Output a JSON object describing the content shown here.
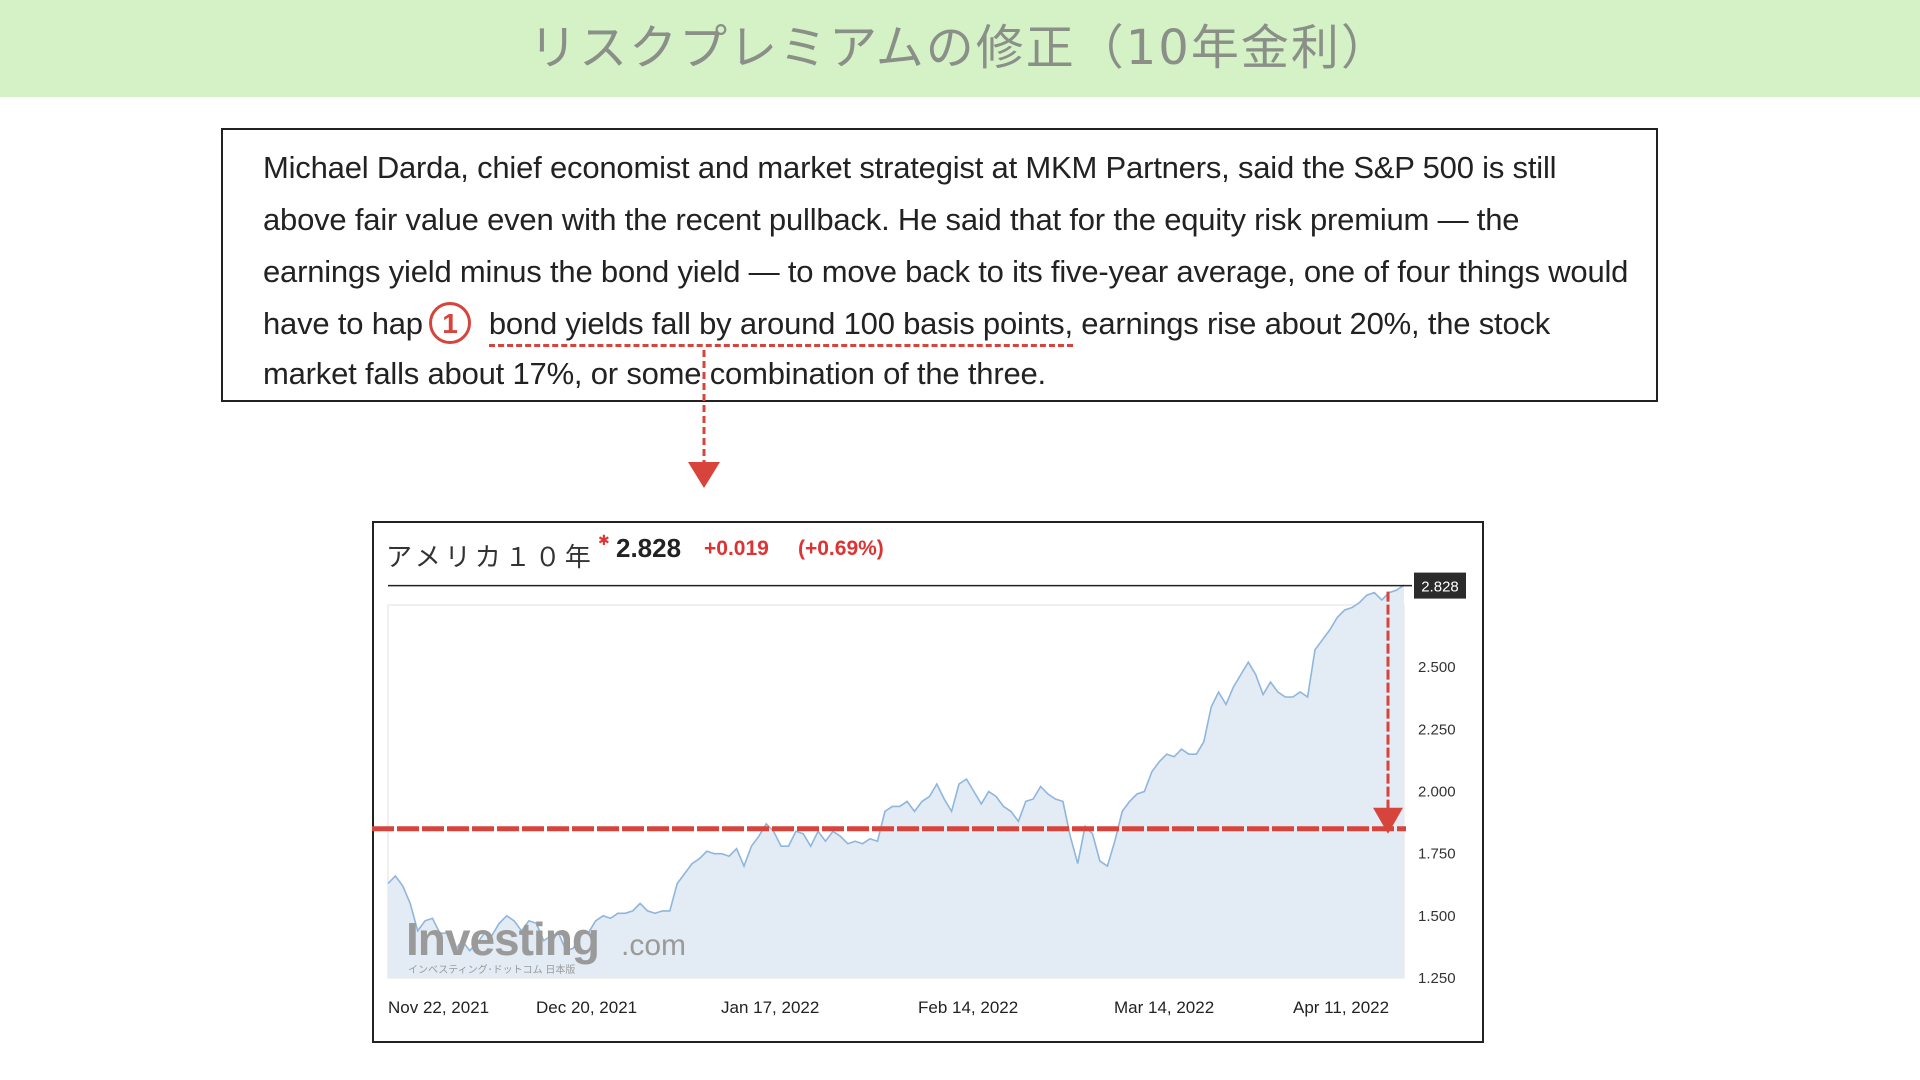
{
  "header": {
    "title": "リスクプレミアムの修正（10年金利）",
    "background": "#d4f2c6"
  },
  "quote": {
    "lines": [
      "Michael Darda, chief economist and market strategist at MKM Partners, said the S&P 500 is still",
      "above fair value even with the recent pullback. He said that for the equity risk premium — the",
      "earnings yield minus the bond yield — to move back to its five-year average, one of four things would",
      "have to hap",
      "market falls about 17%, or some combination of the three."
    ],
    "highlight": "bond yields fall by around 100 basis points,",
    "line4_tail": " earnings rise about 20%, the stock",
    "marker": "1"
  },
  "chart_header": {
    "name": "アメリカ１０年",
    "price": "2.828",
    "change": "+0.019",
    "change_pct": "(+0.69%)"
  },
  "chart_data": {
    "type": "area",
    "title": "",
    "x_tick_labels": [
      "Nov 22, 2021",
      "Dec 20, 2021",
      "Jan 17, 2022",
      "Feb 14, 2022",
      "Mar 14, 2022",
      "Apr 11, 2022"
    ],
    "y_tick_labels": [
      "1.250",
      "1.500",
      "1.750",
      "2.000",
      "2.250",
      "2.500"
    ],
    "ylim": [
      1.25,
      2.75
    ],
    "current_value": 2.828,
    "current_label": "2.828",
    "reference_line": 1.85,
    "arrow_to": 1.83,
    "watermark": "Investing.com",
    "watermark_sub": "インベスティング･ドットコム 日本版",
    "series": [
      {
        "values": [
          1.63,
          1.66,
          1.62,
          1.55,
          1.44,
          1.48,
          1.49,
          1.43,
          1.43,
          1.36,
          1.4,
          1.36,
          1.39,
          1.43,
          1.42,
          1.47,
          1.5,
          1.48,
          1.44,
          1.48,
          1.47,
          1.4,
          1.42,
          1.43,
          1.36,
          1.37,
          1.43,
          1.43,
          1.48,
          1.5,
          1.49,
          1.51,
          1.51,
          1.52,
          1.55,
          1.52,
          1.51,
          1.52,
          1.52,
          1.63,
          1.67,
          1.71,
          1.73,
          1.76,
          1.75,
          1.75,
          1.74,
          1.77,
          1.7,
          1.78,
          1.82,
          1.87,
          1.84,
          1.78,
          1.78,
          1.84,
          1.83,
          1.78,
          1.84,
          1.8,
          1.84,
          1.82,
          1.79,
          1.8,
          1.79,
          1.81,
          1.8,
          1.92,
          1.94,
          1.94,
          1.96,
          1.92,
          1.96,
          1.98,
          2.03,
          1.97,
          1.92,
          2.03,
          2.05,
          2.0,
          1.95,
          2.0,
          1.98,
          1.94,
          1.92,
          1.88,
          1.96,
          1.97,
          2.02,
          1.99,
          1.97,
          1.96,
          1.82,
          1.71,
          1.86,
          1.83,
          1.72,
          1.7,
          1.8,
          1.92,
          1.96,
          1.99,
          2.0,
          2.08,
          2.12,
          2.15,
          2.14,
          2.17,
          2.15,
          2.15,
          2.2,
          2.34,
          2.4,
          2.35,
          2.42,
          2.47,
          2.52,
          2.47,
          2.39,
          2.44,
          2.4,
          2.38,
          2.38,
          2.4,
          2.38,
          2.57,
          2.61,
          2.65,
          2.7,
          2.73,
          2.74,
          2.76,
          2.79,
          2.8,
          2.77,
          2.8,
          2.81,
          2.83
        ]
      }
    ],
    "colors": {
      "line": "#8fb6dc",
      "area": "#e3ebf4",
      "reference": "#d6443b"
    }
  }
}
